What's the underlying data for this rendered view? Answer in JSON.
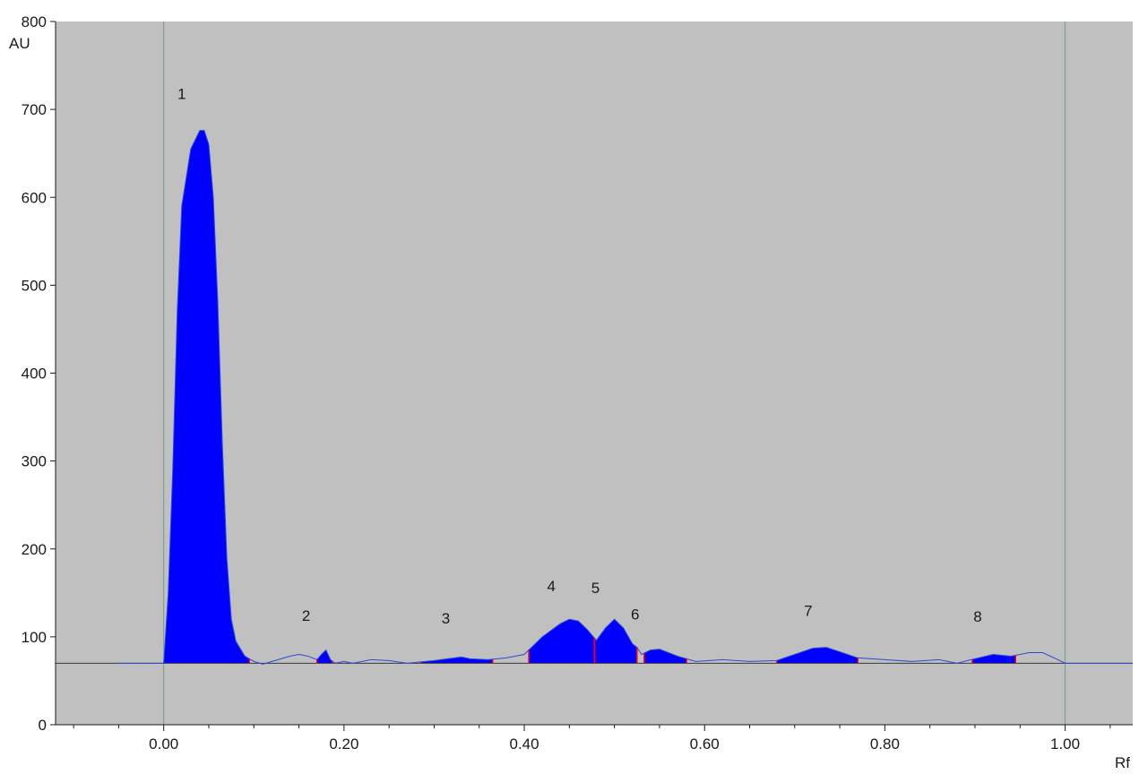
{
  "chart_data": {
    "type": "area",
    "title": "",
    "xlabel": "Rf",
    "ylabel": "AU",
    "xlim": [
      -0.12,
      1.075
    ],
    "ylim": [
      0,
      800
    ],
    "x_ticks": [
      "0.00",
      "0.20",
      "0.40",
      "0.60",
      "0.80",
      "1.00"
    ],
    "y_ticks": [
      "0",
      "100",
      "200",
      "300",
      "400",
      "500",
      "600",
      "700",
      "800"
    ],
    "baseline_au": 70,
    "grid": false,
    "vertical_markers_rf": [
      0.0,
      1.0
    ],
    "colors": {
      "plot_background": "#c0c0c0",
      "peak_fill": "#0000ff",
      "trace": "#2a4bd7",
      "baseline": "#3a3a3a",
      "marker_line": "#6f9e8a",
      "peak_boundary": "#ff0000"
    },
    "trace": [
      [
        -0.05,
        70
      ],
      [
        0.0,
        70
      ],
      [
        0.005,
        150
      ],
      [
        0.01,
        290
      ],
      [
        0.015,
        470
      ],
      [
        0.02,
        590
      ],
      [
        0.03,
        655
      ],
      [
        0.04,
        676
      ],
      [
        0.045,
        676
      ],
      [
        0.05,
        660
      ],
      [
        0.055,
        600
      ],
      [
        0.06,
        480
      ],
      [
        0.065,
        320
      ],
      [
        0.07,
        190
      ],
      [
        0.075,
        120
      ],
      [
        0.08,
        95
      ],
      [
        0.09,
        78
      ],
      [
        0.1,
        72
      ],
      [
        0.11,
        69
      ],
      [
        0.12,
        72
      ],
      [
        0.14,
        78
      ],
      [
        0.15,
        80
      ],
      [
        0.16,
        78
      ],
      [
        0.17,
        74
      ],
      [
        0.175,
        80
      ],
      [
        0.18,
        85
      ],
      [
        0.185,
        74
      ],
      [
        0.19,
        70
      ],
      [
        0.2,
        72
      ],
      [
        0.21,
        70
      ],
      [
        0.23,
        74
      ],
      [
        0.25,
        73
      ],
      [
        0.27,
        70
      ],
      [
        0.3,
        73
      ],
      [
        0.33,
        77
      ],
      [
        0.34,
        75
      ],
      [
        0.36,
        74
      ],
      [
        0.38,
        76
      ],
      [
        0.4,
        80
      ],
      [
        0.42,
        100
      ],
      [
        0.44,
        115
      ],
      [
        0.45,
        120
      ],
      [
        0.46,
        118
      ],
      [
        0.47,
        108
      ],
      [
        0.48,
        96
      ],
      [
        0.49,
        110
      ],
      [
        0.5,
        120
      ],
      [
        0.51,
        110
      ],
      [
        0.52,
        92
      ],
      [
        0.525,
        88
      ],
      [
        0.53,
        80
      ],
      [
        0.54,
        85
      ],
      [
        0.55,
        86
      ],
      [
        0.57,
        78
      ],
      [
        0.59,
        72
      ],
      [
        0.62,
        74
      ],
      [
        0.65,
        72
      ],
      [
        0.68,
        73
      ],
      [
        0.7,
        80
      ],
      [
        0.72,
        87
      ],
      [
        0.735,
        88
      ],
      [
        0.75,
        83
      ],
      [
        0.77,
        76
      ],
      [
        0.8,
        74
      ],
      [
        0.83,
        72
      ],
      [
        0.86,
        74
      ],
      [
        0.88,
        70
      ],
      [
        0.9,
        75
      ],
      [
        0.92,
        80
      ],
      [
        0.94,
        78
      ],
      [
        0.96,
        82
      ],
      [
        0.975,
        82
      ],
      [
        0.99,
        75
      ],
      [
        1.0,
        70
      ],
      [
        1.075,
        70
      ]
    ],
    "peaks": [
      {
        "label": "1",
        "start": 0.0,
        "end": 0.095,
        "label_rf": 0.02,
        "label_au": 712
      },
      {
        "label": "2",
        "start": 0.17,
        "end": 0.187,
        "label_rf": 0.158,
        "label_au": 118
      },
      {
        "label": "3",
        "start": 0.285,
        "end": 0.365,
        "label_rf": 0.313,
        "label_au": 115
      },
      {
        "label": "4",
        "start": 0.405,
        "end": 0.478,
        "label_rf": 0.43,
        "label_au": 152
      },
      {
        "label": "5",
        "start": 0.478,
        "end": 0.525,
        "label_rf": 0.479,
        "label_au": 150
      },
      {
        "label": "6",
        "start": 0.533,
        "end": 0.58,
        "label_rf": 0.523,
        "label_au": 120
      },
      {
        "label": "7",
        "start": 0.68,
        "end": 0.77,
        "label_rf": 0.715,
        "label_au": 124
      },
      {
        "label": "8",
        "start": 0.897,
        "end": 0.945,
        "label_rf": 0.903,
        "label_au": 117
      }
    ]
  }
}
